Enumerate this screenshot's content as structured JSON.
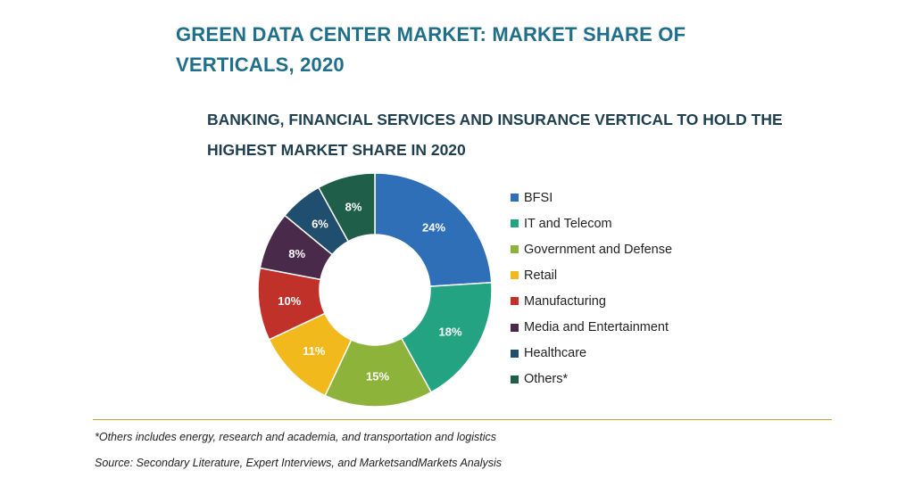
{
  "header": {
    "title": "GREEN DATA CENTER MARKET: MARKET SHARE OF VERTICALS, 2020",
    "subtitle": "BANKING, FINANCIAL SERVICES AND INSURANCE VERTICAL TO HOLD THE HIGHEST MARKET SHARE IN 2020"
  },
  "chart_data": {
    "type": "pie",
    "variant": "donut",
    "title": "BANKING, FINANCIAL SERVICES AND INSURANCE VERTICAL TO HOLD THE HIGHEST MARKET SHARE IN 2020",
    "unit": "%",
    "legend_position": "right",
    "categories": [
      "BFSI",
      "IT and Telecom",
      "Government and Defense",
      "Retail",
      "Manufacturing",
      "Media and Entertainment",
      "Healthcare",
      "Others*"
    ],
    "values": [
      24,
      18,
      15,
      11,
      10,
      8,
      6,
      8
    ],
    "labels": [
      "24%",
      "18%",
      "15%",
      "11%",
      "10%",
      "8%",
      "6%",
      "8%"
    ],
    "colors": [
      "#2e6fb7",
      "#23a381",
      "#8db33a",
      "#f2b91d",
      "#c0312a",
      "#4a2a4a",
      "#1f4e6e",
      "#1f5f49"
    ]
  },
  "footer": {
    "note": "*Others includes energy, research and academia, and transportation and logistics",
    "source": "Source: Secondary Literature, Expert Interviews, and MarketsandMarkets Analysis"
  }
}
